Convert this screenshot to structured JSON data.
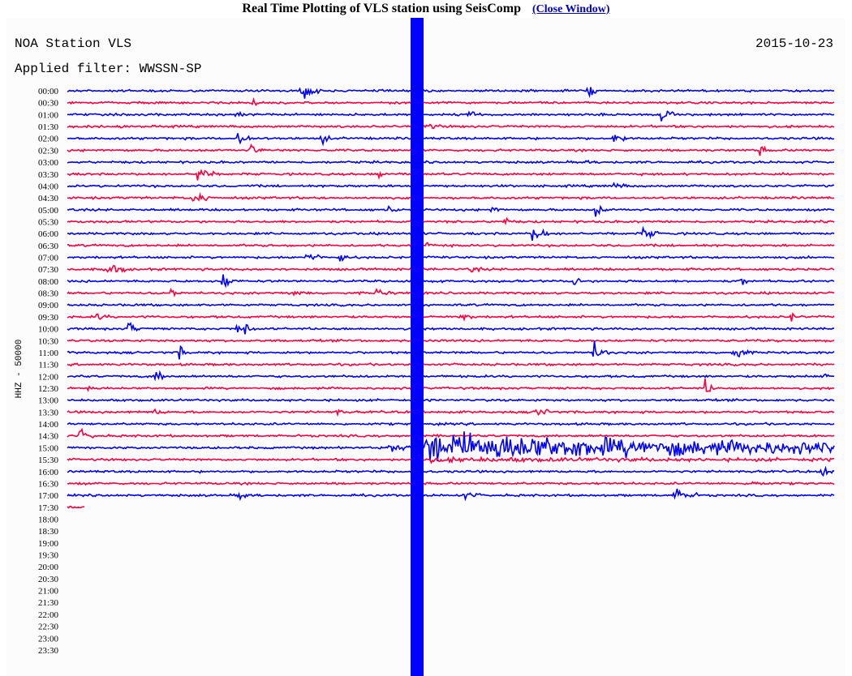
{
  "header": {
    "title": "Real Time Plotting of VLS station using SeisComp",
    "link": "(Close Window)"
  },
  "station": "NOA Station VLS",
  "date": "2015-10-23",
  "filter": "Applied filter: WWSSN-SP",
  "axis_label": "HHZ - 50000",
  "times": [
    "00:00",
    "00:30",
    "01:00",
    "01:30",
    "02:00",
    "02:30",
    "03:00",
    "03:30",
    "04:00",
    "04:30",
    "05:00",
    "05:30",
    "06:00",
    "06:30",
    "07:00",
    "07:30",
    "08:00",
    "08:30",
    "09:00",
    "09:30",
    "10:00",
    "10:30",
    "11:00",
    "11:30",
    "12:00",
    "12:30",
    "13:00",
    "13:30",
    "14:00",
    "14:30",
    "15:00",
    "15:30",
    "16:00",
    "16:30",
    "17:00",
    "17:30",
    "18:00",
    "18:30",
    "19:00",
    "19:30",
    "20:00",
    "20:30",
    "21:00",
    "21:30",
    "22:00",
    "22:30",
    "23:00",
    "23:30"
  ]
}
